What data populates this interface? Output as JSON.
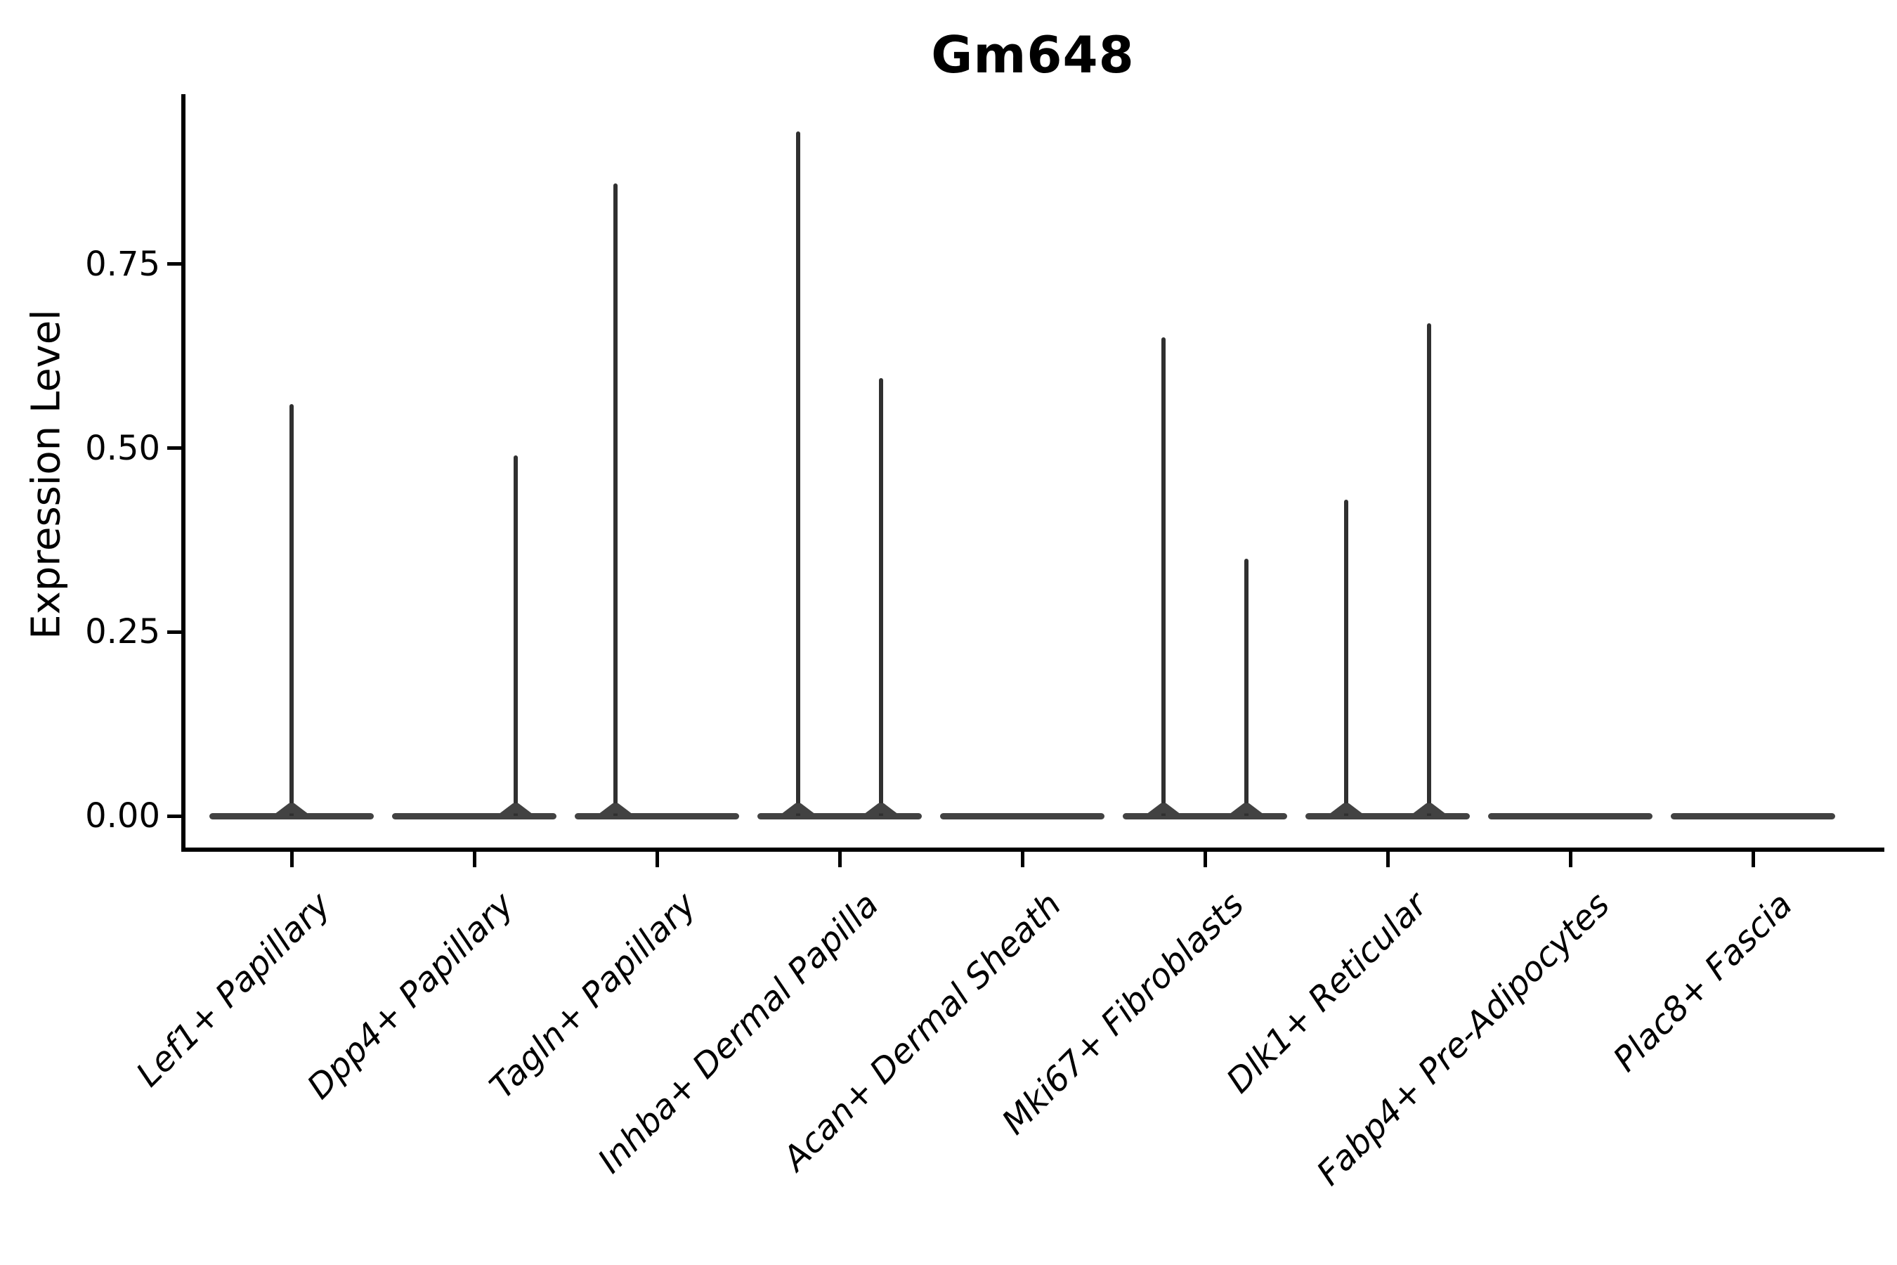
{
  "header": {
    "title": "Gm648"
  },
  "axes": {
    "ylabel": "Expression Level",
    "ytick_labels": [
      "0.00",
      "0.25",
      "0.50",
      "0.75"
    ]
  },
  "chart_data": {
    "type": "violin",
    "title": "Gm648",
    "xlabel": "",
    "ylabel": "Expression Level",
    "ylim": [
      0,
      0.98
    ],
    "yticks": [
      0.0,
      0.25,
      0.5,
      0.75
    ],
    "grid": false,
    "legend_position": "none",
    "categories": [
      "Lef1+ Papillary",
      "Dpp4+ Papillary",
      "Tagln+ Papillary",
      "Inhba+ Dermal Papilla",
      "Acan+ Dermal Sheath",
      "Mki67+ Fibroblasts",
      "Dlk1+ Reticular",
      "Fabp4+ Pre-Adipocytes",
      "Plac8+ Fascia"
    ],
    "violins": [
      {
        "category": "Lef1+ Papillary",
        "zero_inflated": true,
        "spikes": [
          {
            "pos": 0.0,
            "max": 0.56
          }
        ]
      },
      {
        "category": "Dpp4+ Papillary",
        "zero_inflated": true,
        "spikes": [
          {
            "pos": 0.227,
            "max": 0.49
          }
        ]
      },
      {
        "category": "Tagln+ Papillary",
        "zero_inflated": true,
        "spikes": [
          {
            "pos": -0.227,
            "max": 0.86
          }
        ]
      },
      {
        "category": "Inhba+ Dermal Papilla",
        "zero_inflated": true,
        "spikes": [
          {
            "pos": -0.227,
            "max": 0.93
          },
          {
            "pos": 0.227,
            "max": 0.595
          }
        ]
      },
      {
        "category": "Acan+ Dermal Sheath",
        "zero_inflated": true,
        "spikes": []
      },
      {
        "category": "Mki67+ Fibroblasts",
        "zero_inflated": true,
        "spikes": [
          {
            "pos": -0.227,
            "max": 0.65
          },
          {
            "pos": 0.227,
            "max": 0.35
          }
        ]
      },
      {
        "category": "Dlk1+ Reticular",
        "zero_inflated": true,
        "spikes": [
          {
            "pos": -0.227,
            "max": 0.43
          },
          {
            "pos": 0.227,
            "max": 0.67
          }
        ]
      },
      {
        "category": "Fabp4+ Pre-Adipocytes",
        "zero_inflated": true,
        "spikes": []
      },
      {
        "category": "Plac8+ Fascia",
        "zero_inflated": true,
        "spikes": []
      }
    ],
    "colors": {
      "spike": "#303030",
      "violin_body": "#424242",
      "axis": "#000000",
      "background": "#ffffff"
    }
  }
}
